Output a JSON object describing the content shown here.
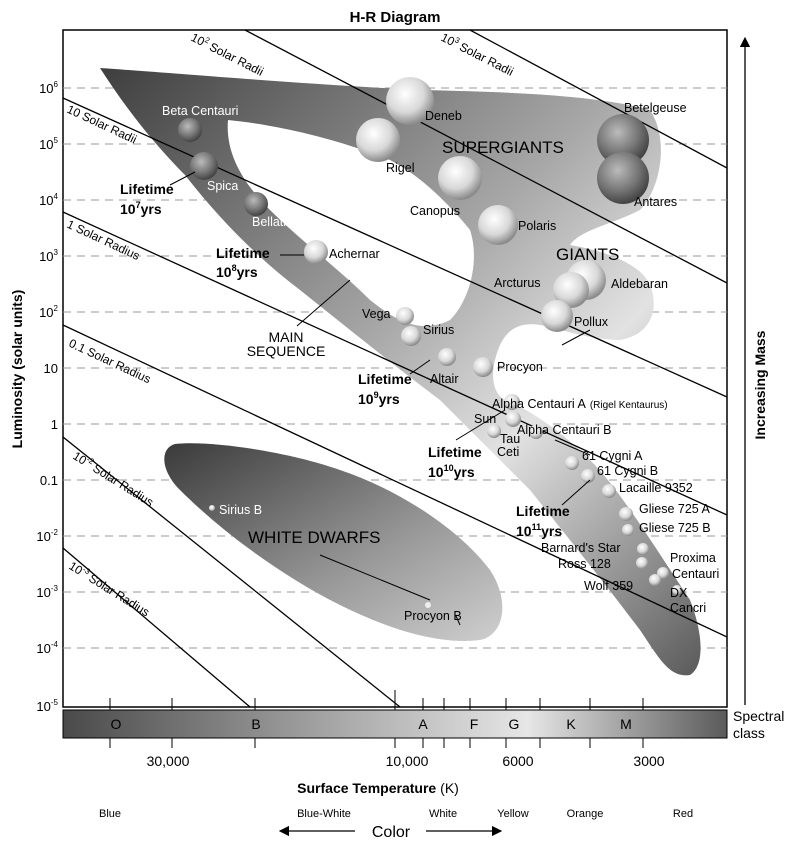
{
  "title": "H-R Diagram",
  "y_axis": {
    "label": "Luminosity (solar units)",
    "ticks": [
      {
        "base": "10",
        "exp": "6"
      },
      {
        "base": "10",
        "exp": "5"
      },
      {
        "base": "10",
        "exp": "4"
      },
      {
        "base": "10",
        "exp": "3"
      },
      {
        "base": "10",
        "exp": "2"
      },
      {
        "base": "10",
        "exp": ""
      },
      {
        "base": "1",
        "exp": ""
      },
      {
        "base": "0.1",
        "exp": ""
      },
      {
        "base": "10",
        "exp": "-2"
      },
      {
        "base": "10",
        "exp": "-3"
      },
      {
        "base": "10",
        "exp": "-4"
      },
      {
        "base": "10",
        "exp": "-5"
      }
    ]
  },
  "x_axis": {
    "label": "Surface Temperature",
    "unit": "(K)",
    "ticks": [
      "30,000",
      "10,000",
      "6000",
      "3000"
    ]
  },
  "spectral": {
    "classes": [
      "O",
      "B",
      "A",
      "F",
      "G",
      "K",
      "M"
    ],
    "label_line1": "Spectral",
    "label_line2": "class"
  },
  "mass_label": "Increasing Mass",
  "color_scale": {
    "names": [
      "Blue",
      "Blue-White",
      "White",
      "Yellow",
      "Orange",
      "Red"
    ],
    "axis_label": "Color"
  },
  "radius_lines": [
    {
      "base": "10",
      "exp": "2",
      "suffix": "Solar Radii"
    },
    {
      "base": "10",
      "exp": "3",
      "suffix": "Solar Radii"
    },
    {
      "base": "10 Solar Radii",
      "exp": "",
      "suffix": ""
    },
    {
      "base": "1 Solar Radius",
      "exp": "",
      "suffix": ""
    },
    {
      "base": "0.1 Solar Radius",
      "exp": "",
      "suffix": ""
    },
    {
      "base": "10",
      "exp": "-2",
      "suffix": "Solar Radius"
    },
    {
      "base": "10",
      "exp": "-3",
      "suffix": "Solar Radius"
    }
  ],
  "regions": {
    "supergiants": "SUPERGIANTS",
    "giants": "GIANTS",
    "main_sequence_1": "MAIN",
    "main_sequence_2": "SEQUENCE",
    "white_dwarfs": "WHITE DWARFS"
  },
  "lifetimes": [
    {
      "label": "Lifetime",
      "value": "10",
      "exp": "7",
      "unit": "yrs"
    },
    {
      "label": "Lifetime",
      "value": "10",
      "exp": "8",
      "unit": "yrs"
    },
    {
      "label": "Lifetime",
      "value": "10",
      "exp": "9",
      "unit": "yrs"
    },
    {
      "label": "Lifetime",
      "value": "10",
      "exp": "10",
      "unit": "yrs"
    },
    {
      "label": "Lifetime",
      "value": "10",
      "exp": "11",
      "unit": "yrs"
    }
  ],
  "stars": [
    "Beta Centauri",
    "Spica",
    "Bellatrix",
    "Achernar",
    "Vega",
    "Sirius",
    "Altair",
    "Procyon",
    "Deneb",
    "Rigel",
    "Canopus",
    "Polaris",
    "Betelgeuse",
    "Antares",
    "Arcturus",
    "Aldebaran",
    "Pollux",
    "Alpha Centauri A",
    "(Rigel Kentaurus)",
    "Sun",
    "Tau",
    "Ceti",
    "Alpha Centauri B",
    "61 Cygni A",
    "61 Cygni B",
    "Lacaille 9352",
    "Gliese 725 A",
    "Gliese 725 B",
    "Barnard's Star",
    "Ross 128",
    "Proxima",
    "Centauri",
    "Wolf 359",
    "DX",
    "Cancri",
    "Sirius B",
    "Procyon B"
  ]
}
